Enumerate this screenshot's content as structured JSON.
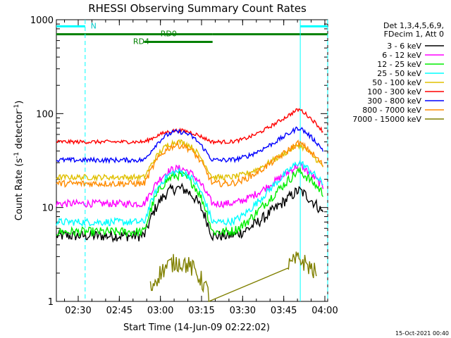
{
  "chart_data": {
    "type": "line",
    "title": "RHESSI Observing Summary Count Rates",
    "xlabel": "Start Time (14-Jun-09 02:22:02)",
    "ylabel_main": "Count Rate (s",
    "ylabel_sup1": "-1",
    "ylabel_mid": " detector",
    "ylabel_sup2": "-1",
    "ylabel_end": ")",
    "y_scale": "log",
    "ylim": [
      1,
      1000
    ],
    "xlim_minutes": [
      0,
      99
    ],
    "x_ticks": [
      {
        "label": "02:30",
        "minute": 7.97
      },
      {
        "label": "02:45",
        "minute": 22.97
      },
      {
        "label": "03:00",
        "minute": 37.97
      },
      {
        "label": "03:15",
        "minute": 52.97
      },
      {
        "label": "03:30",
        "minute": 67.97
      },
      {
        "label": "03:45",
        "minute": 82.97
      },
      {
        "label": "04:00",
        "minute": 97.97
      }
    ],
    "y_ticks": [
      {
        "label": "1",
        "value": 1
      },
      {
        "label": "10",
        "value": 10
      },
      {
        "label": "100",
        "value": 100
      },
      {
        "label": "1000",
        "value": 1000
      }
    ],
    "legend_header": [
      "Det 1,3,4,5,6,9,",
      "FDecim 1, Att 0"
    ],
    "series": [
      {
        "name": "3 - 6 keV",
        "color": "#000000",
        "base": 5,
        "peak": 16,
        "flare": 15,
        "noise": 0.06
      },
      {
        "name": "6 - 12 keV",
        "color": "#ff00ff",
        "base": 11,
        "peak": 26,
        "flare": 28,
        "noise": 0.04
      },
      {
        "name": "12 - 25 keV",
        "color": "#00ee00",
        "base": 5.5,
        "peak": 22,
        "flare": 24,
        "noise": 0.05
      },
      {
        "name": "25 - 50 keV",
        "color": "#00ffff",
        "base": 7,
        "peak": 24,
        "flare": 30,
        "noise": 0.04
      },
      {
        "name": "50 - 100 keV",
        "color": "#e0c000",
        "base": 21,
        "peak": 50,
        "flare": 46,
        "noise": 0.03
      },
      {
        "name": "100 - 300 keV",
        "color": "#ff0000",
        "base": 50,
        "peak": 66,
        "flare": 110,
        "noise": 0.02
      },
      {
        "name": "300 - 800 keV",
        "color": "#0000ff",
        "base": 32,
        "peak": 64,
        "flare": 70,
        "noise": 0.025
      },
      {
        "name": "800 - 7000 keV",
        "color": "#ff8c00",
        "base": 18,
        "peak": 46,
        "flare": 48,
        "noise": 0.035
      },
      {
        "name": "7000 - 15000 keV",
        "color": "#808000",
        "base": 1,
        "peak": 2.6,
        "flare": 2.8,
        "noise": 0.1
      }
    ],
    "flags": [
      {
        "label": "N",
        "color": "#00ffff",
        "segments": [
          [
            0,
            10.5
          ],
          [
            89,
            99
          ]
        ],
        "y_value": 850
      },
      {
        "label": "RD0",
        "color": "#008000",
        "segments": [
          [
            0,
            57
          ],
          [
            57,
            99
          ]
        ],
        "y_value": 700
      },
      {
        "label": "RD4",
        "color": "#008000",
        "segments": [
          [
            32,
            57
          ]
        ],
        "y_value": 580
      }
    ],
    "vertical_markers": [
      {
        "minute": 10.5,
        "style": "dashed"
      },
      {
        "minute": 89,
        "style": "solid"
      },
      {
        "minute": 99,
        "style": "dashed"
      }
    ],
    "timestamp": "15-Oct-2021 00:40"
  }
}
